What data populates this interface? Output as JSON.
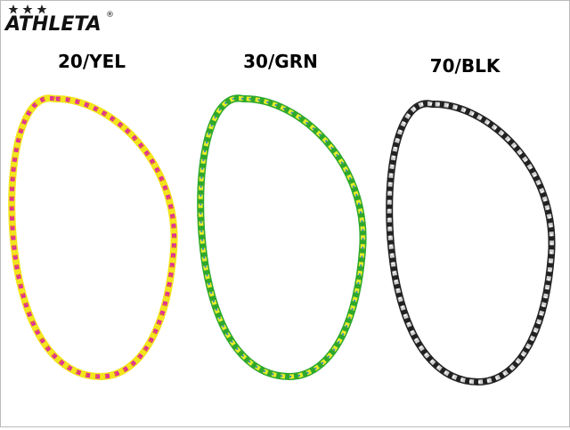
{
  "logo": {
    "name": "ATHLETA",
    "mark": "®"
  },
  "products": [
    {
      "label": "20/YEL"
    },
    {
      "label": "30/GRN"
    },
    {
      "label": "70/BLK"
    }
  ]
}
